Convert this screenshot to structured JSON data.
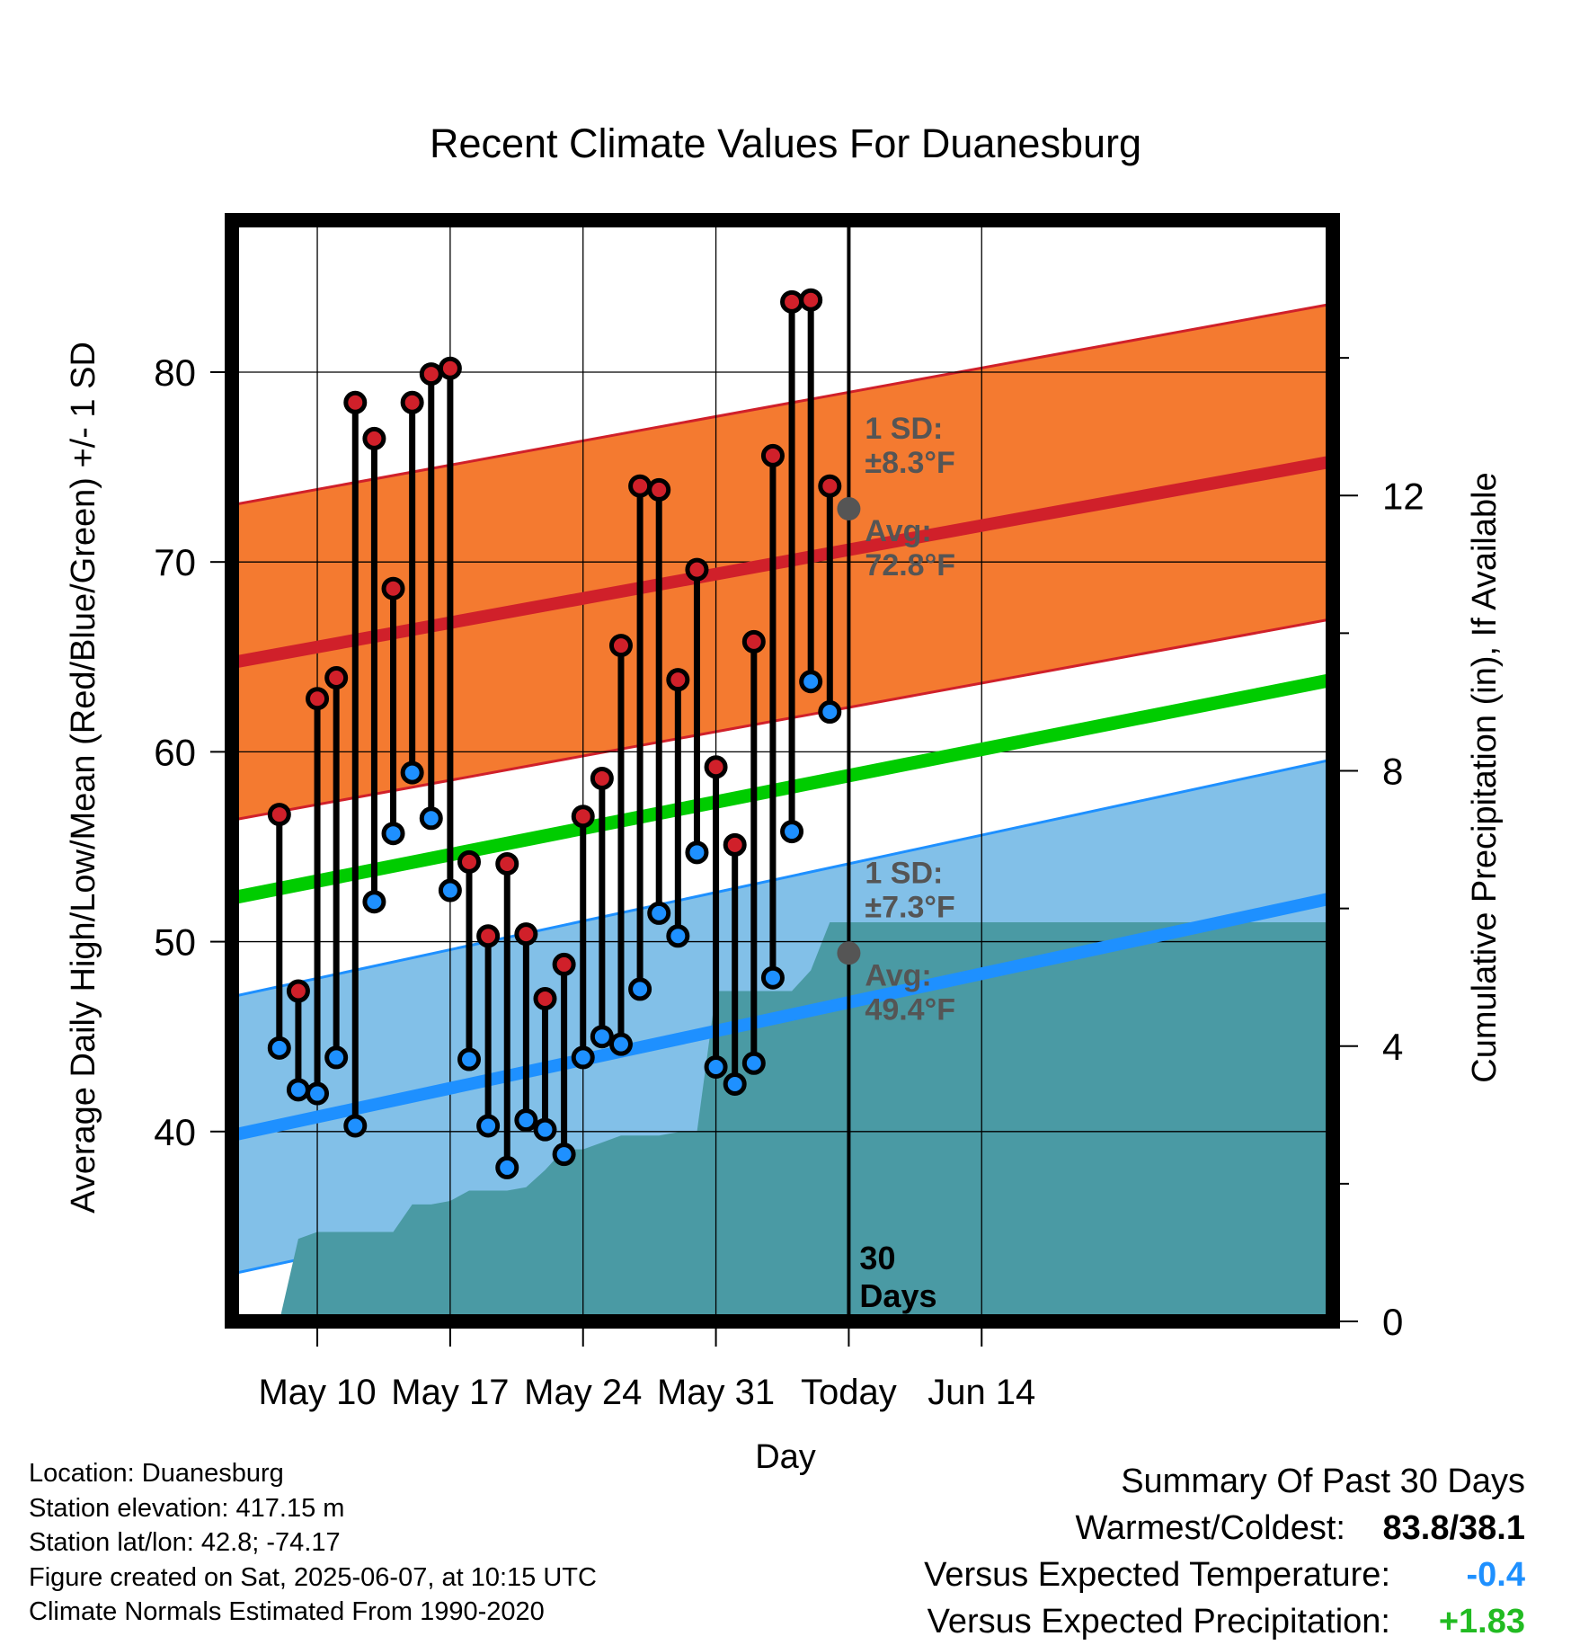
{
  "chart_data": {
    "type": "line",
    "title": "Recent Climate Values For Duanesburg",
    "xlabel": "Day",
    "ylabel": "Average Daily High/Low/Mean (Red/Blue/Green) +/- 1 SD",
    "y2label": "Cumulative Precipitation (in), If Available",
    "ylim": [
      30,
      88
    ],
    "y_ticks": [
      40,
      50,
      60,
      70,
      80
    ],
    "y2lim": [
      0,
      16
    ],
    "y2_ticks": [
      0,
      4,
      8,
      12
    ],
    "x_range_days": [
      -30.5,
      27.5
    ],
    "x_ticks": [
      {
        "day": -26,
        "label": "May 10"
      },
      {
        "day": -19,
        "label": "May 17"
      },
      {
        "day": -12,
        "label": "May 24"
      },
      {
        "day": -5,
        "label": "May 31"
      },
      {
        "day": 2,
        "label": "Today"
      },
      {
        "day": 9,
        "label": "Jun 14"
      }
    ],
    "today_day": 2,
    "series": [
      {
        "name": "High",
        "color": "#d0202a",
        "values": [
          56.7,
          47.4,
          62.8,
          63.9,
          78.4,
          76.5,
          68.6,
          78.4,
          79.9,
          80.2,
          54.2,
          50.3,
          54.1,
          50.4,
          47.0,
          48.8,
          56.6,
          58.6,
          65.6,
          74.0,
          73.8,
          63.8,
          69.6,
          59.2,
          55.1,
          65.8,
          75.6,
          83.7,
          83.8,
          74.0
        ]
      },
      {
        "name": "Low",
        "color": "#1e90ff",
        "values": [
          44.4,
          42.2,
          42.0,
          43.9,
          40.3,
          52.1,
          55.7,
          58.9,
          56.5,
          52.7,
          43.8,
          40.3,
          38.1,
          40.6,
          40.1,
          38.8,
          43.9,
          45.0,
          44.6,
          47.5,
          51.5,
          50.3,
          54.7,
          43.4,
          42.5,
          43.6,
          48.1,
          55.8,
          63.7,
          62.1
        ]
      },
      {
        "name": "Cumulative Precipitation",
        "color": "#4a9aa4",
        "values": [
          0.0,
          1.2,
          1.3,
          1.3,
          1.3,
          1.3,
          1.3,
          1.7,
          1.7,
          1.75,
          1.9,
          1.9,
          1.9,
          1.95,
          2.2,
          2.5,
          2.5,
          2.6,
          2.7,
          2.7,
          2.7,
          2.75,
          2.75,
          4.8,
          4.8,
          4.8,
          4.8,
          4.8,
          5.1,
          5.8,
          5.8
        ]
      }
    ],
    "normals": {
      "high_avg_range": [
        64.7,
        75.3
      ],
      "low_avg_range": [
        39.8,
        52.3
      ],
      "mean_range": [
        52.3,
        63.8
      ],
      "high_sd": 8.3,
      "low_sd": 7.3
    },
    "annotations": {
      "high_sd_line1": "1 SD:",
      "high_sd_line2": "±8.3°F",
      "high_avg_line1": "Avg:",
      "high_avg_line2": "72.8°F",
      "low_sd_line1": "1 SD:",
      "low_sd_line2": "±7.3°F",
      "low_avg_line1": "Avg:",
      "low_avg_line2": "49.4°F",
      "days_num": "30",
      "days_word": "Days"
    },
    "high_avg_today": 72.8,
    "low_avg_today": 49.4,
    "colors": {
      "high_band": "#f47a30",
      "high_line": "#d0202a",
      "low_band": "#82c0e8",
      "low_line": "#1e90ff",
      "mean_line": "#00cc00",
      "precip": "#4a9aa4",
      "avg_marker": "#555555"
    }
  },
  "footer": {
    "location": "Location: Duanesburg",
    "elevation": "Station elevation: 417.15 m",
    "latlon": "Station lat/lon: 42.8; -74.17",
    "created": "Figure created on Sat, 2025-06-07, at 10:15 UTC",
    "normals": "Climate Normals Estimated From 1990-2020"
  },
  "summary": {
    "title": "Summary Of Past 30 Days",
    "warm_label": "Warmest/Coldest:",
    "warm_value": "83.8/38.1",
    "temp_label": "Versus Expected Temperature:",
    "temp_value": "-0.4",
    "temp_color": "#1e90ff",
    "precip_label": "Versus Expected Precipitation:",
    "precip_value": "+1.83",
    "precip_color": "#22bb22"
  }
}
